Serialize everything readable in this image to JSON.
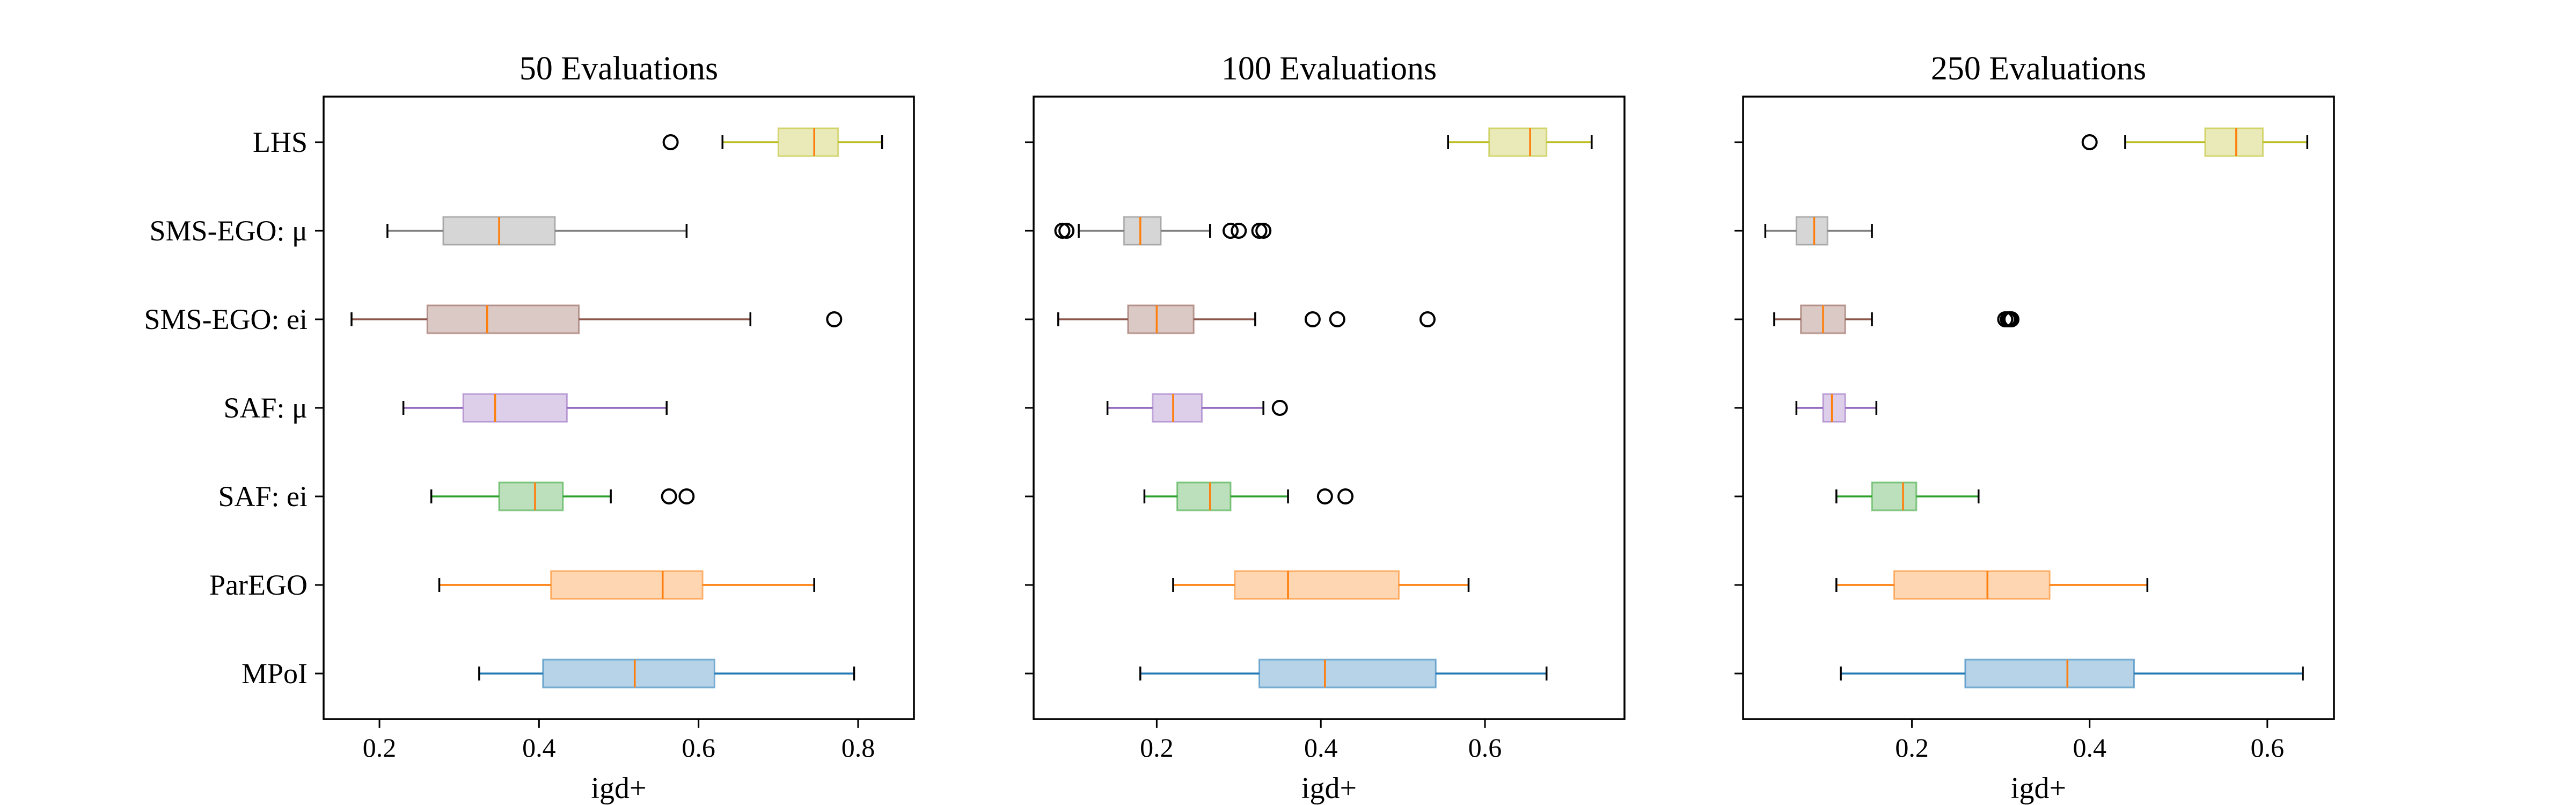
{
  "chart_data": [
    {
      "type": "boxplot",
      "orientation": "horizontal",
      "title": "50 Evaluations",
      "xlabel": "igd+",
      "xlim": [
        0.13,
        0.87
      ],
      "xticks": [
        0.2,
        0.4,
        0.6,
        0.8
      ],
      "xtick_labels": [
        "0.2",
        "0.4",
        "0.6",
        "0.8"
      ],
      "categories": [
        "LHS",
        "SMS-EGO: μ",
        "SMS-EGO: ei",
        "SAF: μ",
        "SAF: ei",
        "ParEGO",
        "MPoI"
      ],
      "series": [
        {
          "name": "LHS",
          "color": "#bcbd22",
          "whisker_low": 0.63,
          "q1": 0.7,
          "median": 0.745,
          "q3": 0.775,
          "whisker_high": 0.83,
          "fliers": [
            0.565
          ]
        },
        {
          "name": "SMS-EGO: μ",
          "color": "#7f7f7f",
          "whisker_low": 0.21,
          "q1": 0.28,
          "median": 0.35,
          "q3": 0.42,
          "whisker_high": 0.585,
          "fliers": []
        },
        {
          "name": "SMS-EGO: ei",
          "color": "#8c564b",
          "whisker_low": 0.165,
          "q1": 0.26,
          "median": 0.335,
          "q3": 0.45,
          "whisker_high": 0.665,
          "fliers": [
            0.77
          ]
        },
        {
          "name": "SAF: μ",
          "color": "#9467bd",
          "whisker_low": 0.23,
          "q1": 0.305,
          "median": 0.345,
          "q3": 0.435,
          "whisker_high": 0.56,
          "fliers": []
        },
        {
          "name": "SAF: ei",
          "color": "#2ca02c",
          "whisker_low": 0.265,
          "q1": 0.35,
          "median": 0.395,
          "q3": 0.43,
          "whisker_high": 0.49,
          "fliers": [
            0.563,
            0.585
          ]
        },
        {
          "name": "ParEGO",
          "color": "#ff7f0e",
          "whisker_low": 0.275,
          "q1": 0.415,
          "median": 0.555,
          "q3": 0.605,
          "whisker_high": 0.745,
          "fliers": []
        },
        {
          "name": "MPoI",
          "color": "#1f77b4",
          "whisker_low": 0.325,
          "q1": 0.405,
          "median": 0.52,
          "q3": 0.62,
          "whisker_high": 0.795,
          "fliers": []
        }
      ]
    },
    {
      "type": "boxplot",
      "orientation": "horizontal",
      "title": "100 Evaluations",
      "xlabel": "igd+",
      "xlim": [
        0.05,
        0.77
      ],
      "xticks": [
        0.2,
        0.4,
        0.6
      ],
      "xtick_labels": [
        "0.2",
        "0.4",
        "0.6"
      ],
      "categories": [
        "LHS",
        "SMS-EGO: μ",
        "SMS-EGO: ei",
        "SAF: μ",
        "SAF: ei",
        "ParEGO",
        "MPoI"
      ],
      "series": [
        {
          "name": "LHS",
          "color": "#bcbd22",
          "whisker_low": 0.555,
          "q1": 0.605,
          "median": 0.655,
          "q3": 0.675,
          "whisker_high": 0.73,
          "fliers": []
        },
        {
          "name": "SMS-EGO: μ",
          "color": "#7f7f7f",
          "whisker_low": 0.105,
          "q1": 0.16,
          "median": 0.18,
          "q3": 0.205,
          "whisker_high": 0.265,
          "fliers": [
            0.085,
            0.09,
            0.29,
            0.3,
            0.325,
            0.33
          ]
        },
        {
          "name": "SMS-EGO: ei",
          "color": "#8c564b",
          "whisker_low": 0.08,
          "q1": 0.165,
          "median": 0.2,
          "q3": 0.245,
          "whisker_high": 0.32,
          "fliers": [
            0.39,
            0.42,
            0.53
          ]
        },
        {
          "name": "SAF: μ",
          "color": "#9467bd",
          "whisker_low": 0.14,
          "q1": 0.195,
          "median": 0.22,
          "q3": 0.255,
          "whisker_high": 0.33,
          "fliers": [
            0.35
          ]
        },
        {
          "name": "SAF: ei",
          "color": "#2ca02c",
          "whisker_low": 0.185,
          "q1": 0.225,
          "median": 0.265,
          "q3": 0.29,
          "whisker_high": 0.36,
          "fliers": [
            0.405,
            0.43
          ]
        },
        {
          "name": "ParEGO",
          "color": "#ff7f0e",
          "whisker_low": 0.22,
          "q1": 0.295,
          "median": 0.36,
          "q3": 0.495,
          "whisker_high": 0.58,
          "fliers": []
        },
        {
          "name": "MPoI",
          "color": "#1f77b4",
          "whisker_low": 0.18,
          "q1": 0.325,
          "median": 0.405,
          "q3": 0.54,
          "whisker_high": 0.675,
          "fliers": []
        }
      ]
    },
    {
      "type": "boxplot",
      "orientation": "horizontal",
      "title": "250 Evaluations",
      "xlabel": "igd+",
      "xlim": [
        0.01,
        0.675
      ],
      "xticks": [
        0.2,
        0.4,
        0.6
      ],
      "xtick_labels": [
        "0.2",
        "0.4",
        "0.6"
      ],
      "categories": [
        "LHS",
        "SMS-EGO: μ",
        "SMS-EGO: ei",
        "SAF: μ",
        "SAF: ei",
        "ParEGO",
        "MPoI"
      ],
      "series": [
        {
          "name": "LHS",
          "color": "#bcbd22",
          "whisker_low": 0.44,
          "q1": 0.53,
          "median": 0.565,
          "q3": 0.595,
          "whisker_high": 0.645,
          "fliers": [
            0.4
          ]
        },
        {
          "name": "SMS-EGO: μ",
          "color": "#7f7f7f",
          "whisker_low": 0.035,
          "q1": 0.07,
          "median": 0.09,
          "q3": 0.105,
          "whisker_high": 0.155,
          "fliers": []
        },
        {
          "name": "SMS-EGO: ei",
          "color": "#8c564b",
          "whisker_low": 0.045,
          "q1": 0.075,
          "median": 0.1,
          "q3": 0.125,
          "whisker_high": 0.155,
          "fliers": [
            0.305,
            0.308,
            0.31,
            0.312
          ]
        },
        {
          "name": "SAF: μ",
          "color": "#9467bd",
          "whisker_low": 0.07,
          "q1": 0.1,
          "median": 0.11,
          "q3": 0.125,
          "whisker_high": 0.16,
          "fliers": []
        },
        {
          "name": "SAF: ei",
          "color": "#2ca02c",
          "whisker_low": 0.115,
          "q1": 0.155,
          "median": 0.19,
          "q3": 0.205,
          "whisker_high": 0.275,
          "fliers": []
        },
        {
          "name": "ParEGO",
          "color": "#ff7f0e",
          "whisker_low": 0.115,
          "q1": 0.18,
          "median": 0.285,
          "q3": 0.355,
          "whisker_high": 0.465,
          "fliers": []
        },
        {
          "name": "MPoI",
          "color": "#1f77b4",
          "whisker_low": 0.12,
          "q1": 0.26,
          "median": 0.375,
          "q3": 0.45,
          "whisker_high": 0.64,
          "fliers": []
        }
      ]
    }
  ]
}
